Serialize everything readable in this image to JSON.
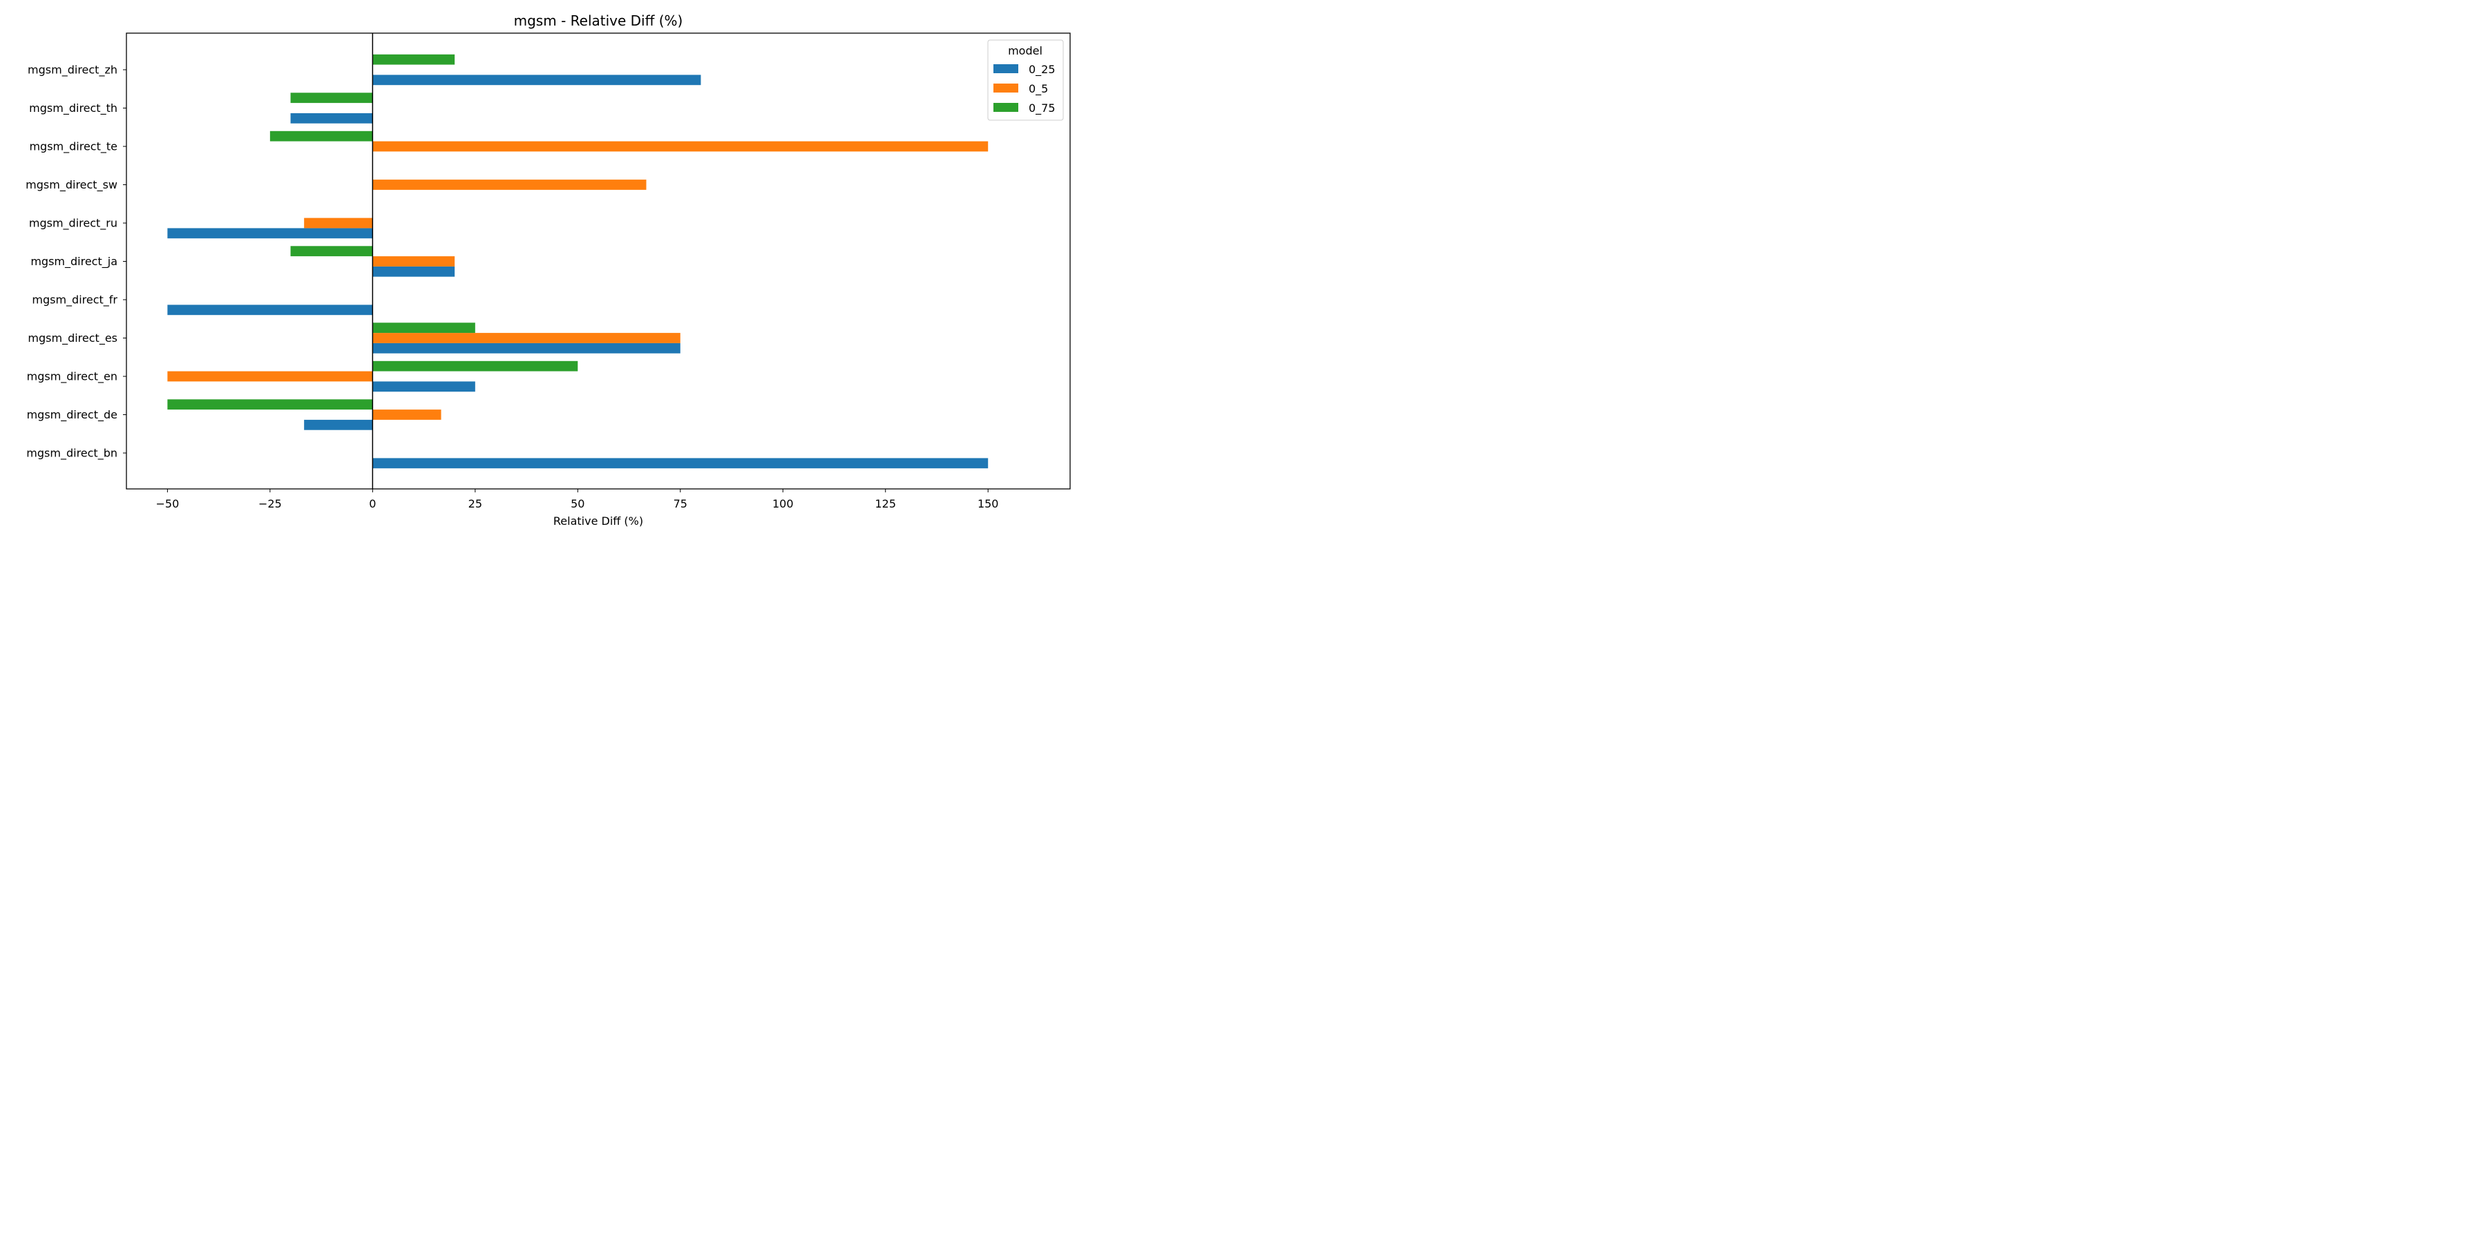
{
  "chart_data": {
    "type": "bar",
    "orientation": "horizontal",
    "title": "mgsm - Relative Diff (%)",
    "xlabel": "Relative Diff (%)",
    "ylabel": "",
    "xlim": [
      -60,
      170
    ],
    "xticks": [
      -50,
      -25,
      0,
      25,
      50,
      75,
      100,
      125,
      150
    ],
    "xtick_labels": [
      "−50",
      "−25",
      "0",
      "25",
      "50",
      "75",
      "100",
      "125",
      "150"
    ],
    "categories": [
      "mgsm_direct_bn",
      "mgsm_direct_de",
      "mgsm_direct_en",
      "mgsm_direct_es",
      "mgsm_direct_fr",
      "mgsm_direct_ja",
      "mgsm_direct_ru",
      "mgsm_direct_sw",
      "mgsm_direct_te",
      "mgsm_direct_th",
      "mgsm_direct_zh"
    ],
    "legend": {
      "title": "model",
      "placement": "top-right"
    },
    "grid": false,
    "series": [
      {
        "name": "0_25",
        "color": "#1f77b4",
        "values": [
          150,
          -16.7,
          25,
          75,
          -50,
          20,
          -50,
          0,
          0,
          -20,
          80
        ]
      },
      {
        "name": "0_5",
        "color": "#ff7f0e",
        "values": [
          0,
          16.7,
          -50,
          75,
          0,
          20,
          -16.7,
          66.7,
          150,
          0,
          0
        ]
      },
      {
        "name": "0_75",
        "color": "#2ca02c",
        "values": [
          0,
          -50,
          50,
          25,
          0,
          -20,
          0,
          0,
          -25,
          -20,
          20
        ]
      }
    ]
  }
}
